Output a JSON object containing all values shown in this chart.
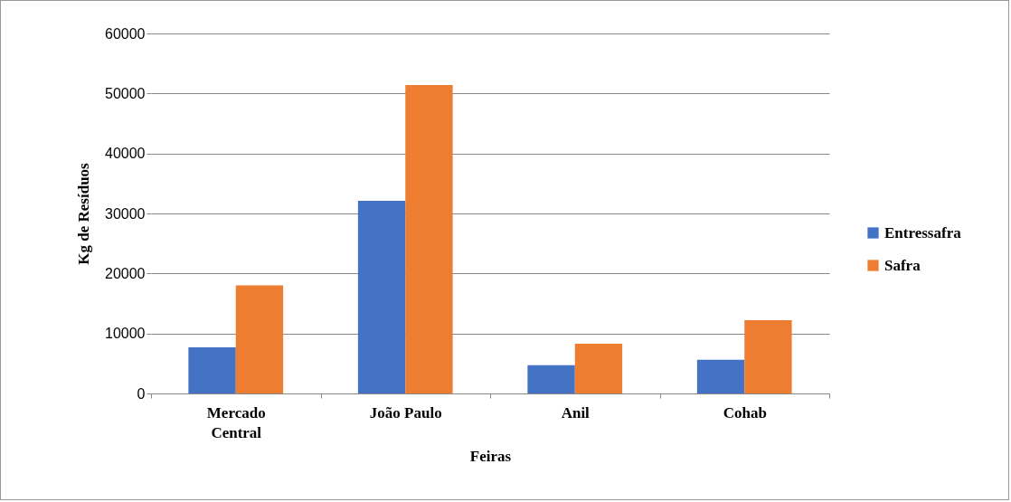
{
  "chart_data": {
    "type": "bar",
    "xlabel": "Feiras",
    "ylabel": "Kg de Resíduos",
    "categories": [
      "Mercado Central",
      "João Paulo",
      "Anil",
      "Cohab"
    ],
    "series": [
      {
        "name": "Entressafra",
        "color": "#4472c4",
        "values": [
          7700,
          32100,
          4700,
          5600
        ]
      },
      {
        "name": "Safra",
        "color": "#ed7d31",
        "values": [
          18000,
          51400,
          8300,
          12200
        ]
      }
    ],
    "ylim": [
      0,
      60000
    ],
    "yticks": [
      0,
      10000,
      20000,
      30000,
      40000,
      50000,
      60000
    ],
    "grid": "y",
    "legend": "right"
  }
}
